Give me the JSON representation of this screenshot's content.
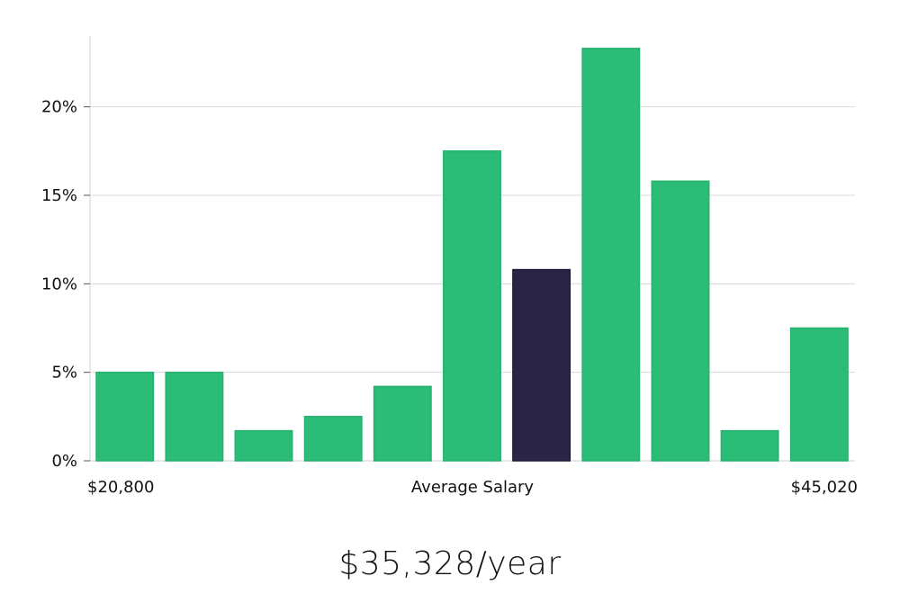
{
  "chart_data": {
    "type": "bar",
    "title": "",
    "xlabel": "Average Salary",
    "ylabel": "",
    "ylim": [
      0,
      24
    ],
    "yticks": [
      0,
      5,
      10,
      15,
      20
    ],
    "ytick_labels": [
      "0%",
      "5%",
      "10%",
      "15%",
      "20%"
    ],
    "grid": true,
    "x_min_label": "$20,800",
    "x_max_label": "$45,020",
    "values": [
      5.0,
      5.0,
      1.7,
      2.5,
      4.2,
      17.5,
      10.8,
      23.3,
      15.8,
      1.7,
      7.5
    ],
    "highlight_index": 6,
    "colors": {
      "bar": "#2bbd77",
      "highlight": "#2a2546",
      "grid": "#d9d9d9",
      "axis": "#cfcfcf"
    }
  },
  "summary": {
    "salary": "$35,328/year"
  }
}
